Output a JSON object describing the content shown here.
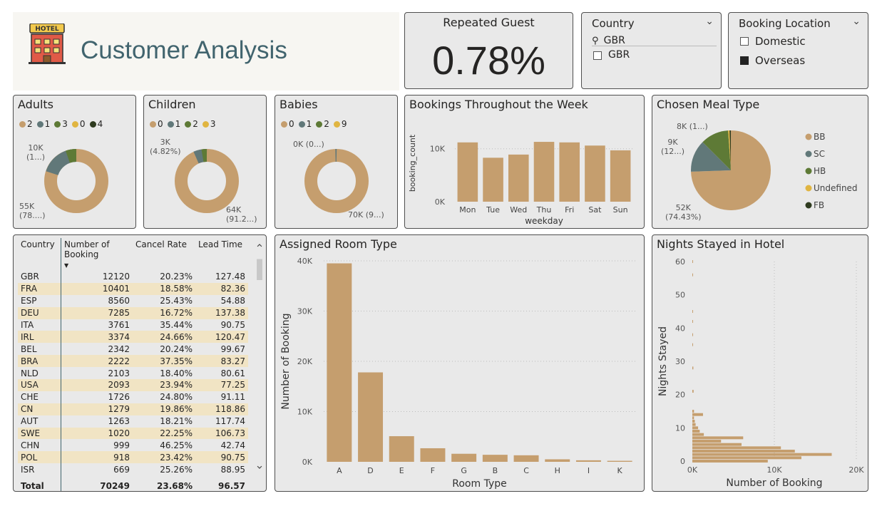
{
  "header": {
    "title": "Customer Analysis",
    "logo_text": "HOTEL"
  },
  "kpi": {
    "title": "Repeated Guest",
    "value": "0.78%"
  },
  "country_slicer": {
    "title": "Country",
    "search_value": "GBR",
    "option": "GBR"
  },
  "location_slicer": {
    "title": "Booking Location",
    "options": [
      {
        "label": "Domestic",
        "checked": false
      },
      {
        "label": "Overseas",
        "checked": true
      }
    ]
  },
  "adults": {
    "title": "Adults",
    "legend": [
      "2",
      "1",
      "3",
      "0",
      "4"
    ],
    "labels": {
      "small": "10K\n(1...)",
      "big": "55K\n(78....)"
    }
  },
  "children": {
    "title": "Children",
    "legend": [
      "0",
      "1",
      "2",
      "3"
    ],
    "labels": {
      "small": "3K\n(4.82%)",
      "big": "64K\n(91.2...)"
    }
  },
  "babies": {
    "title": "Babies",
    "legend": [
      "0",
      "1",
      "2",
      "9"
    ],
    "labels": {
      "small": "0K (0...)",
      "big": "70K (9...)"
    }
  },
  "colors": {
    "c0": "#c59e6e",
    "c1": "#617879",
    "c2": "#5e7a36",
    "c3": "#e0b541",
    "c4": "#2f3b1f",
    "header_text": "#41646e"
  },
  "week_chart": {
    "title": "Bookings Throughout the Week",
    "chart_data": {
      "type": "bar",
      "categories": [
        "Mon",
        "Tue",
        "Wed",
        "Thu",
        "Fri",
        "Sat",
        "Sun"
      ],
      "values": [
        11200,
        8300,
        8900,
        11300,
        11200,
        10600,
        9700
      ],
      "ylabel": "booking_count",
      "xlabel": "weekday",
      "ylim": [
        0,
        14000
      ],
      "ticks": [
        "0K",
        "10K"
      ]
    }
  },
  "meal_chart": {
    "title": "Chosen Meal Type",
    "chart_data": {
      "type": "pie",
      "categories": [
        "BB",
        "SC",
        "HB",
        "Undefined",
        "FB"
      ],
      "values": [
        74.43,
        13.0,
        11.4,
        0.6,
        0.5
      ]
    },
    "labels": {
      "a": "8K (1...)",
      "b": "9K\n(12...)",
      "c": "52K\n(74.43%)"
    }
  },
  "country_table": {
    "columns": [
      "Country",
      "Number of Booking",
      "Cancel Rate",
      "Lead Time"
    ],
    "rows": [
      [
        "GBR",
        "12120",
        "20.23%",
        "127.48"
      ],
      [
        "FRA",
        "10401",
        "18.58%",
        "82.36"
      ],
      [
        "ESP",
        "8560",
        "25.43%",
        "54.88"
      ],
      [
        "DEU",
        "7285",
        "16.72%",
        "137.38"
      ],
      [
        "ITA",
        "3761",
        "35.44%",
        "90.75"
      ],
      [
        "IRL",
        "3374",
        "24.66%",
        "120.47"
      ],
      [
        "BEL",
        "2342",
        "20.24%",
        "99.67"
      ],
      [
        "BRA",
        "2222",
        "37.35%",
        "83.27"
      ],
      [
        "NLD",
        "2103",
        "18.40%",
        "80.61"
      ],
      [
        "USA",
        "2093",
        "23.94%",
        "77.25"
      ],
      [
        "CHE",
        "1726",
        "24.80%",
        "91.11"
      ],
      [
        "CN",
        "1279",
        "19.86%",
        "118.86"
      ],
      [
        "AUT",
        "1263",
        "18.21%",
        "117.74"
      ],
      [
        "SWE",
        "1020",
        "22.25%",
        "106.73"
      ],
      [
        "CHN",
        "999",
        "46.25%",
        "42.74"
      ],
      [
        "POL",
        "918",
        "23.42%",
        "90.75"
      ],
      [
        "ISR",
        "669",
        "25.26%",
        "88.95"
      ]
    ],
    "total": [
      "Total",
      "70249",
      "23.68%",
      "96.57"
    ]
  },
  "room_chart": {
    "title": "Assigned Room Type",
    "chart_data": {
      "type": "bar",
      "categories": [
        "A",
        "D",
        "E",
        "F",
        "G",
        "B",
        "C",
        "H",
        "I",
        "K"
      ],
      "values": [
        39500,
        17800,
        5100,
        2700,
        1600,
        1400,
        1300,
        500,
        300,
        200
      ],
      "xlabel": "Room Type",
      "ylabel": "Number of Booking",
      "ylim": [
        0,
        40000
      ],
      "ticks": [
        "0K",
        "10K",
        "20K",
        "30K",
        "40K"
      ]
    }
  },
  "nights_chart": {
    "title": "Nights Stayed in Hotel",
    "chart_data": {
      "type": "bar",
      "orientation": "horizontal",
      "y": [
        0,
        1,
        2,
        3,
        4,
        5,
        6,
        7,
        8,
        9,
        10,
        11,
        12,
        13,
        14,
        15,
        21,
        28,
        35,
        38,
        42,
        45,
        56,
        60
      ],
      "values": [
        9200,
        13300,
        17000,
        12500,
        10800,
        6000,
        3500,
        6200,
        1400,
        900,
        700,
        400,
        300,
        200,
        1300,
        200,
        150,
        120,
        80,
        70,
        60,
        50,
        40,
        30
      ],
      "xlabel": "Number of Booking",
      "ylabel": "Nights Stayed",
      "xlim": [
        0,
        20000
      ],
      "ylim": [
        0,
        60
      ],
      "xticks": [
        "0K",
        "10K",
        "20K"
      ],
      "yticks": [
        "0",
        "10",
        "20",
        "30",
        "40",
        "50",
        "60"
      ]
    }
  }
}
